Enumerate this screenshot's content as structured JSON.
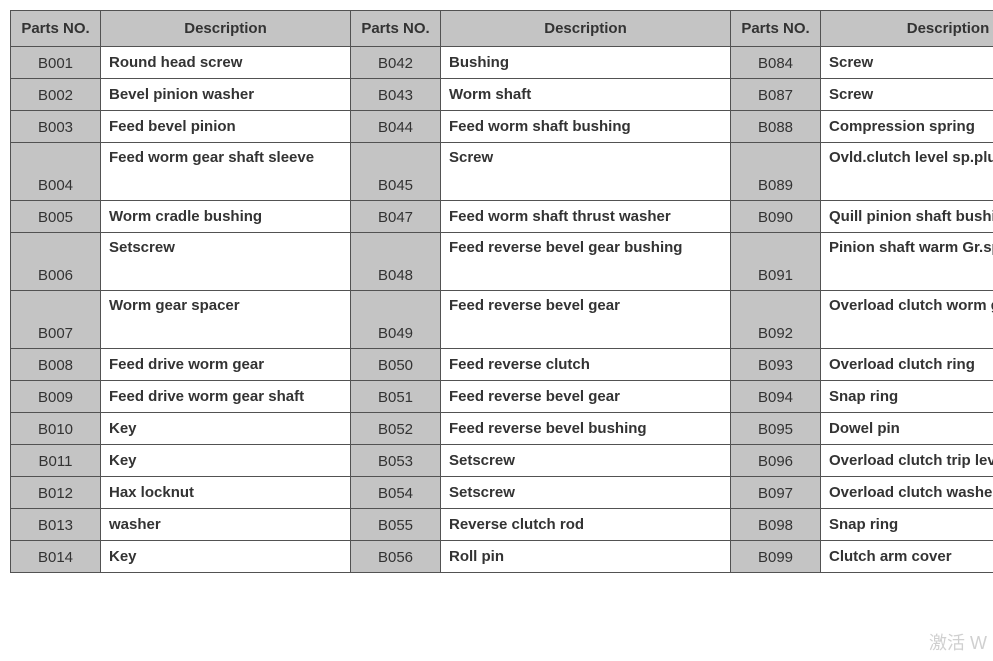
{
  "headers": {
    "parts_no": "Parts NO.",
    "description": "Description"
  },
  "rows": [
    {
      "tall": false,
      "c1_pn": "B001",
      "c1_desc": "Round head screw",
      "c2_pn": "B042",
      "c2_desc": "Bushing",
      "c3_pn": "B084",
      "c3_desc": "Screw"
    },
    {
      "tall": false,
      "c1_pn": "B002",
      "c1_desc": "Bevel pinion washer",
      "c2_pn": "B043",
      "c2_desc": "Worm shaft",
      "c3_pn": "B087",
      "c3_desc": "Screw"
    },
    {
      "tall": false,
      "c1_pn": "B003",
      "c1_desc": "Feed bevel pinion",
      "c2_pn": "B044",
      "c2_desc": "Feed worm shaft bushing",
      "c3_pn": "B088",
      "c3_desc": "Compression spring"
    },
    {
      "tall": true,
      "c1_pn": "B004",
      "c1_desc": "Feed worm gear shaft sleeve",
      "c2_pn": "B045",
      "c2_desc": "Screw",
      "c3_pn": "B089",
      "c3_desc": "Ovld.clutch level sp.plunger"
    },
    {
      "tall": false,
      "c1_pn": "B005",
      "c1_desc": "Worm cradle bushing",
      "c2_pn": "B047",
      "c2_desc": "Feed worm shaft thrust washer",
      "c3_pn": "B090",
      "c3_desc": "Quill pinion shaft bushing"
    },
    {
      "tall": true,
      "c1_pn": "B006",
      "c1_desc": "Setscrew",
      "c2_pn": "B048",
      "c2_desc": "Feed reverse bevel gear bushing",
      "c3_pn": "B091",
      "c3_desc": "Pinion shaft warm Gr.spacer"
    },
    {
      "tall": true,
      "c1_pn": "B007",
      "c1_desc": "Worm gear spacer",
      "c2_pn": "B049",
      "c2_desc": "Feed reverse bevel gear",
      "c3_pn": "B092",
      "c3_desc": "Overload clutch worm gear"
    },
    {
      "tall": false,
      "c1_pn": "B008",
      "c1_desc": "Feed drive worm gear",
      "c2_pn": "B050",
      "c2_desc": "Feed reverse clutch",
      "c3_pn": "B093",
      "c3_desc": "Overload clutch ring"
    },
    {
      "tall": false,
      "c1_pn": "B009",
      "c1_desc": "Feed drive worm gear shaft",
      "c2_pn": "B051",
      "c2_desc": "Feed reverse bevel gear",
      "c3_pn": "B094",
      "c3_desc": "Snap ring"
    },
    {
      "tall": false,
      "c1_pn": "B010",
      "c1_desc": "Key",
      "c2_pn": "B052",
      "c2_desc": "Feed reverse bevel bushing",
      "c3_pn": "B095",
      "c3_desc": "Dowel pin"
    },
    {
      "tall": false,
      "c1_pn": "B011",
      "c1_desc": "Key",
      "c2_pn": "B053",
      "c2_desc": "Setscrew",
      "c3_pn": "B096",
      "c3_desc": "Overload clutch trip level"
    },
    {
      "tall": false,
      "c1_pn": "B012",
      "c1_desc": "Hax locknut",
      "c2_pn": "B054",
      "c2_desc": "Setscrew",
      "c3_pn": "B097",
      "c3_desc": "Overload clutch washer"
    },
    {
      "tall": false,
      "c1_pn": "B013",
      "c1_desc": "washer",
      "c2_pn": "B055",
      "c2_desc": "Reverse clutch rod",
      "c3_pn": "B098",
      "c3_desc": "Snap ring"
    },
    {
      "tall": false,
      "c1_pn": "B014",
      "c1_desc": "Key",
      "c2_pn": "B056",
      "c2_desc": "Roll pin",
      "c3_pn": "B099",
      "c3_desc": "Clutch arm cover"
    }
  ],
  "watermark": "激活 W"
}
